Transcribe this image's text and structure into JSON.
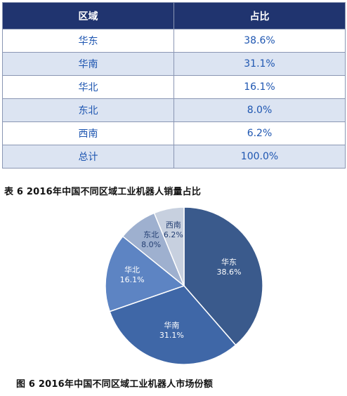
{
  "table": {
    "headers": [
      "区域",
      "占比"
    ],
    "rows": [
      [
        "华东",
        "38.6%"
      ],
      [
        "华南",
        "31.1%"
      ],
      [
        "华北",
        "16.1%"
      ],
      [
        "东北",
        "8.0%"
      ],
      [
        "西南",
        "6.2%"
      ],
      [
        "总计",
        "100.0%"
      ]
    ]
  },
  "captions": {
    "table": "表 6  2016年中国不同区域工业机器人销量占比",
    "chart": "图 6  2016年中国不同区域工业机器人市场份额"
  },
  "chart_data": {
    "type": "pie",
    "title": "图 6  2016年中国不同区域工业机器人市场份额",
    "series": [
      {
        "label": "华东",
        "value": 38.6,
        "value_label": "38.6%",
        "color": "#3a5a8c",
        "text_color": "#ffffff"
      },
      {
        "label": "华南",
        "value": 31.1,
        "value_label": "31.1%",
        "color": "#3f67a7",
        "text_color": "#ffffff"
      },
      {
        "label": "华北",
        "value": 16.1,
        "value_label": "16.1%",
        "color": "#5d84c3",
        "text_color": "#ffffff"
      },
      {
        "label": "东北",
        "value": 8.0,
        "value_label": "8.0%",
        "color": "#9eb0cf",
        "text_color": "#243f73"
      },
      {
        "label": "西南",
        "value": 6.2,
        "value_label": "6.2%",
        "color": "#c7d0df",
        "text_color": "#243f73"
      }
    ]
  }
}
